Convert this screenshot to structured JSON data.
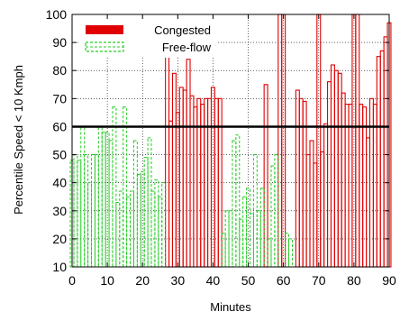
{
  "chart_data": {
    "type": "bar",
    "xlabel": "Minutes",
    "ylabel": "Percentile Speed < 10 Kmph",
    "xlim": [
      0,
      90
    ],
    "ylim": [
      10,
      100
    ],
    "xticks": [
      0,
      10,
      20,
      30,
      40,
      50,
      60,
      70,
      80,
      90
    ],
    "yticks": [
      10,
      20,
      30,
      40,
      50,
      60,
      70,
      80,
      90,
      100
    ],
    "grid": true,
    "threshold": 60,
    "legend_position": "top-left",
    "series": [
      {
        "name": "Congested",
        "color": "#e00000",
        "style": "solid",
        "x": [
          27,
          28,
          29,
          30,
          31,
          32,
          33,
          34,
          35,
          36,
          37,
          38,
          39,
          40,
          41,
          42,
          55,
          59,
          60,
          64,
          65,
          66,
          67,
          68,
          69,
          70,
          71,
          72,
          73,
          74,
          75,
          76,
          77,
          78,
          79,
          80,
          81,
          82,
          83,
          84,
          85,
          86,
          87,
          88,
          89,
          90
        ],
        "values": [
          88,
          62,
          79,
          65,
          74,
          73,
          84,
          71,
          67,
          70,
          68,
          70,
          70,
          74,
          70,
          70,
          75,
          100,
          100,
          73,
          70,
          69,
          50,
          55,
          47,
          100,
          51,
          61,
          76,
          82,
          80,
          79,
          72,
          68,
          68,
          100,
          100,
          68,
          67,
          56,
          70,
          68,
          85,
          87,
          92,
          97
        ]
      },
      {
        "name": "Free-flow",
        "color": "#22cc22",
        "style": "dashed",
        "x": [
          0,
          1,
          2,
          3,
          4,
          5,
          6,
          7,
          8,
          9,
          10,
          11,
          12,
          13,
          14,
          15,
          16,
          17,
          18,
          19,
          20,
          21,
          22,
          23,
          24,
          25,
          26,
          43,
          44,
          45,
          46,
          47,
          48,
          49,
          50,
          51,
          52,
          53,
          54,
          56,
          57,
          58,
          61,
          62
        ],
        "values": [
          48,
          50,
          48,
          60,
          50,
          40,
          50,
          50,
          60,
          58,
          58,
          55,
          67,
          33,
          37,
          67,
          35,
          37,
          55,
          43,
          44,
          49,
          56,
          37,
          41,
          35,
          40,
          22,
          30,
          30,
          55,
          57,
          27,
          35,
          38,
          29,
          50,
          30,
          38,
          20,
          46,
          50,
          22,
          20
        ]
      }
    ]
  }
}
